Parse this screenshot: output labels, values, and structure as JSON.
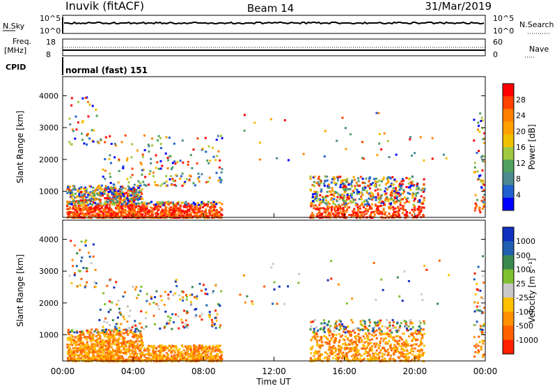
{
  "header": {
    "station": "Inuvik (fitACF)",
    "beam": "Beam 14",
    "date": "31/Mar/2019"
  },
  "top_panels": {
    "nsky_label": "N.Sky",
    "nsky_ticks": [
      "10^5",
      "10^0"
    ],
    "nsearch_label": "N.Search",
    "nsearch_ticks": [
      "10^5",
      "10^0"
    ],
    "freq_label": "Freq.",
    "freq_unit": "[MHz]",
    "freq_ticks": [
      "18",
      "8"
    ],
    "nave_label": "Nave",
    "nave_ticks": [
      "60",
      "0"
    ],
    "cpid_label": "CPID",
    "cpid_value": "normal (fast) 151"
  },
  "chart_data": [
    {
      "type": "heatmap",
      "name": "power",
      "ylabel": "Slant Range [km]",
      "y_ticks": [
        "4000",
        "3000",
        "2000",
        "1000"
      ],
      "ylim": [
        180,
        4600
      ],
      "x_ticks": [
        "00:00",
        "04:00",
        "08:00",
        "12:00",
        "16:00",
        "20:00",
        "00:00"
      ],
      "xlim_hours": [
        0,
        24
      ],
      "colorbar_label": "Power [dB]",
      "colorbar_ticks": [
        "28",
        "24",
        "20",
        "16",
        "12",
        "8",
        "4"
      ],
      "colorbar_colors": [
        "#ff0000",
        "#ff4000",
        "#ff8000",
        "#ffa000",
        "#f0c000",
        "#a0c840",
        "#50a060",
        "#4a8a90",
        "#2060d0",
        "#0000ff"
      ]
    },
    {
      "type": "heatmap",
      "name": "velocity",
      "ylabel": "Slant Range [km]",
      "y_ticks": [
        "4000",
        "3000",
        "2000",
        "1000"
      ],
      "ylim": [
        180,
        4600
      ],
      "x_ticks": [
        "00:00",
        "04:00",
        "08:00",
        "12:00",
        "16:00",
        "20:00",
        "00:00"
      ],
      "xlim_hours": [
        0,
        24
      ],
      "xlabel": "Time UT",
      "colorbar_label": "Velocity [m s⁻¹]",
      "colorbar_ticks": [
        "1000",
        "500",
        "100",
        "25",
        "-25",
        "-100",
        "-500",
        "-1000"
      ],
      "colorbar_colors": [
        "#1030c0",
        "#2060b0",
        "#3a8a50",
        "#80c030",
        "#c8c8c8",
        "#ffc000",
        "#ff9000",
        "#ff6000",
        "#ff2000"
      ]
    }
  ]
}
